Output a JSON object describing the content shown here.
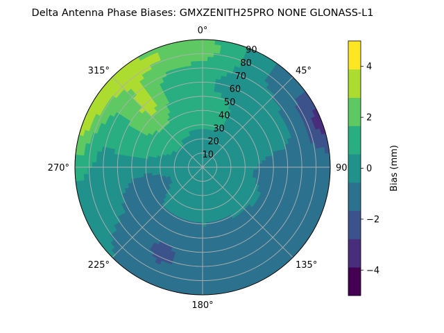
{
  "chart_data": {
    "type": "heatmap",
    "subtype": "polar-filled-contour",
    "title": "Delta Antenna Phase Biases: GMXZENITH25PRO  NONE GLONASS-L1",
    "colorbar_label": "Bias (mm)",
    "colorbar_ticks": [
      "4",
      "2",
      "0",
      "−2",
      "−4"
    ],
    "colorbar_tick_values": [
      4,
      2,
      0,
      -2,
      -4
    ],
    "colorbar_range": [
      -5,
      5
    ],
    "contour_levels": [
      -5,
      -4.5,
      -4,
      -3,
      -2.5,
      -2,
      -1,
      -0.5,
      0,
      1,
      1.5,
      2,
      3,
      3.5,
      4,
      5
    ],
    "colormap": "viridis",
    "level_colors": [
      "#440154",
      "#472d7b",
      "#3b528b",
      "#2c728e",
      "#21918c",
      "#28ae80",
      "#5ec962",
      "#addc30",
      "#fde725"
    ],
    "azimuth_labels": [
      "0°",
      "45°",
      "90°",
      "135°",
      "180°",
      "225°",
      "270°",
      "315°"
    ],
    "azimuth_values": [
      0,
      45,
      90,
      135,
      180,
      225,
      270,
      315
    ],
    "radial_labels": [
      "10",
      "20",
      "30",
      "40",
      "50",
      "60",
      "70",
      "80",
      "90"
    ],
    "radial_values": [
      10,
      20,
      30,
      40,
      50,
      60,
      70,
      80,
      90
    ],
    "radial_range": [
      0,
      90
    ],
    "theta_zero": "N",
    "theta_direction": "clockwise",
    "grid": true,
    "background_bias_mm": 0,
    "regions": [
      {
        "bias_mm": 0.7,
        "az": 0,
        "zen": 40,
        "s_az": 60,
        "s_zen": 30
      },
      {
        "bias_mm": 1.2,
        "az": 300,
        "zen": 50,
        "s_az": 25,
        "s_zen": 25
      },
      {
        "bias_mm": 2.6,
        "az": 345,
        "zen": 85,
        "s_az": 40,
        "s_zen": 16
      },
      {
        "bias_mm": 2.8,
        "az": 295,
        "zen": 90,
        "s_az": 25,
        "s_zen": 12
      },
      {
        "bias_mm": 2.0,
        "az": 320,
        "zen": 60,
        "s_az": 15,
        "s_zen": 20
      },
      {
        "bias_mm": -1.5,
        "az": 160,
        "zen": 70,
        "s_az": 65,
        "s_zen": 30
      },
      {
        "bias_mm": -1.6,
        "az": 55,
        "zen": 85,
        "s_az": 35,
        "s_zen": 18
      },
      {
        "bias_mm": -1.8,
        "az": 70,
        "zen": 90,
        "s_az": 12,
        "s_zen": 10
      },
      {
        "bias_mm": -1.2,
        "az": 95,
        "zen": 55,
        "s_az": 15,
        "s_zen": 18
      },
      {
        "bias_mm": -0.9,
        "az": 210,
        "zen": 65,
        "s_az": 20,
        "s_zen": 25
      },
      {
        "bias_mm": -1.0,
        "az": 250,
        "zen": 40,
        "s_az": 20,
        "s_zen": 20
      }
    ]
  }
}
